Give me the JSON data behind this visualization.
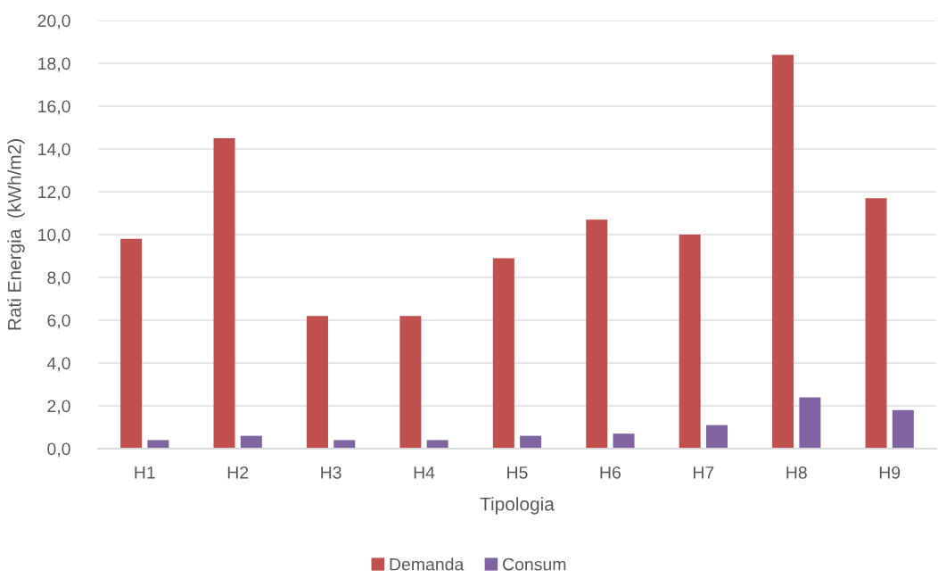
{
  "chart_data": {
    "type": "bar",
    "xlabel": "Tipologia",
    "ylabel": "Rati Energia  (kWh/m2)",
    "categories": [
      "H1",
      "H2",
      "H3",
      "H4",
      "H5",
      "H6",
      "H7",
      "H8",
      "H9"
    ],
    "series": [
      {
        "name": "Demanda",
        "color": "#c0504d",
        "values": [
          9.8,
          14.5,
          6.2,
          6.2,
          8.9,
          10.7,
          10.0,
          18.4,
          11.7
        ]
      },
      {
        "name": "Consum",
        "color": "#8064a2",
        "values": [
          0.4,
          0.6,
          0.4,
          0.4,
          0.6,
          0.7,
          1.1,
          2.4,
          1.8
        ]
      }
    ],
    "ylim": [
      0,
      20
    ],
    "yticks": [
      {
        "value": 0,
        "label": "0,0"
      },
      {
        "value": 2,
        "label": "2,0"
      },
      {
        "value": 4,
        "label": "4,0"
      },
      {
        "value": 6,
        "label": "6,0"
      },
      {
        "value": 8,
        "label": "8,0"
      },
      {
        "value": 10,
        "label": "10,0"
      },
      {
        "value": 12,
        "label": "12,0"
      },
      {
        "value": 14,
        "label": "14,0"
      },
      {
        "value": 16,
        "label": "16,0"
      },
      {
        "value": 18,
        "label": "18,0"
      },
      {
        "value": 20,
        "label": "20,0"
      }
    ],
    "grid": "y",
    "legend": "bottom"
  }
}
